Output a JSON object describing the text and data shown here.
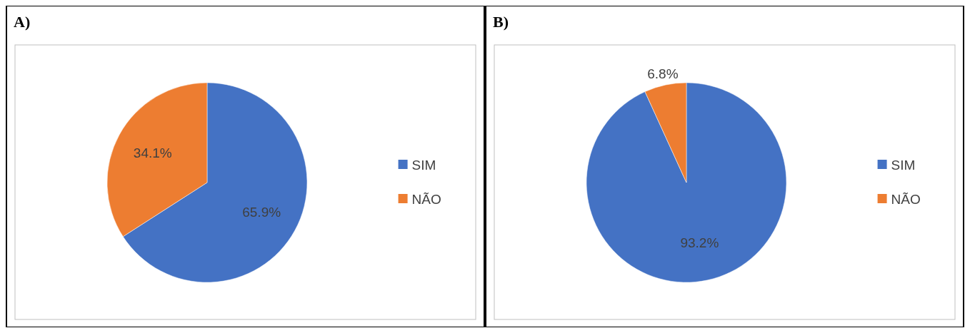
{
  "chart_data": [
    {
      "type": "pie",
      "title": "A)",
      "categories": [
        "SIM",
        "NÃO"
      ],
      "values": [
        65.9,
        34.1
      ],
      "value_labels": [
        "65.9%",
        "34.1%"
      ],
      "colors": [
        "#4472c4",
        "#ed7d31"
      ],
      "legend": "right"
    },
    {
      "type": "pie",
      "title": "B)",
      "categories": [
        "SIM",
        "NÃO"
      ],
      "values": [
        93.2,
        6.8
      ],
      "value_labels": [
        "93.2%",
        "6.8%"
      ],
      "colors": [
        "#4472c4",
        "#ed7d31"
      ],
      "legend": "right"
    }
  ]
}
